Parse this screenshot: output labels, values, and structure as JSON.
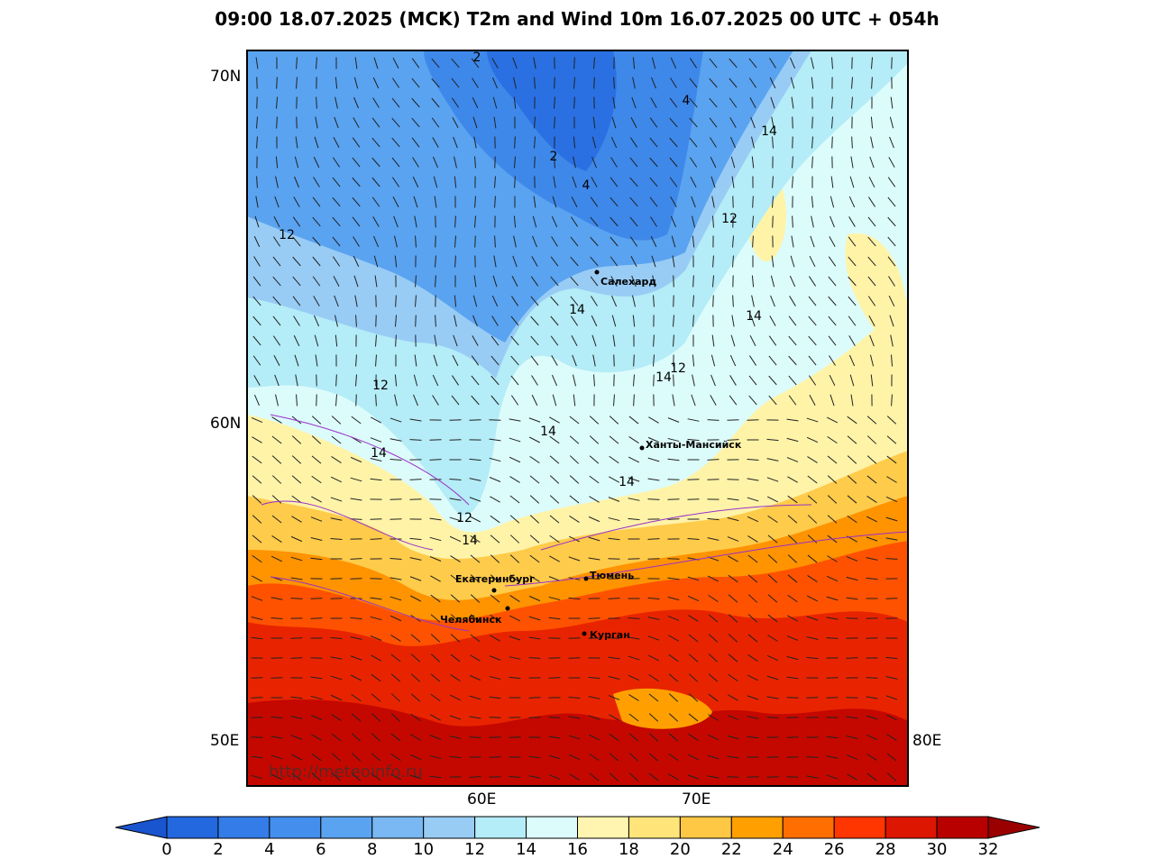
{
  "title": "09:00 18.07.2025 (MCK) T2m and Wind 10m 16.07.2025 00 UTC + 054h",
  "axis_labels": {
    "lat": [
      "70N",
      "60N"
    ],
    "lon_left": "50E",
    "lon_right": "80E",
    "lon_bottom": [
      "60E",
      "70E"
    ]
  },
  "cities": [
    "Салехард",
    "Ханты-Мансийск",
    "Екатеринбург",
    "Тюмень",
    "Челябинск",
    "Курган"
  ],
  "contour_labels": [
    "2",
    "4",
    "14",
    "2",
    "4",
    "12",
    "12",
    "14",
    "14",
    "12",
    "14",
    "12",
    "14",
    "14",
    "14",
    "12",
    "14"
  ],
  "watermark": "http://meteoinfo.ru",
  "colorbar": {
    "ticks": [
      0,
      2,
      4,
      6,
      8,
      10,
      12,
      14,
      16,
      18,
      20,
      22,
      24,
      26,
      28,
      30,
      32
    ],
    "colors": [
      "#2468e0",
      "#347ce8",
      "#448fee",
      "#5aa3f0",
      "#79b8f2",
      "#98ccf5",
      "#b4ecf7",
      "#dcfcfb",
      "#fff4b0",
      "#ffe47a",
      "#ffc844",
      "#ffa000",
      "#ff6e00",
      "#ff3600",
      "#dc1600",
      "#b80000"
    ],
    "under_color": "#1a55d0",
    "over_color": "#9a0000"
  }
}
